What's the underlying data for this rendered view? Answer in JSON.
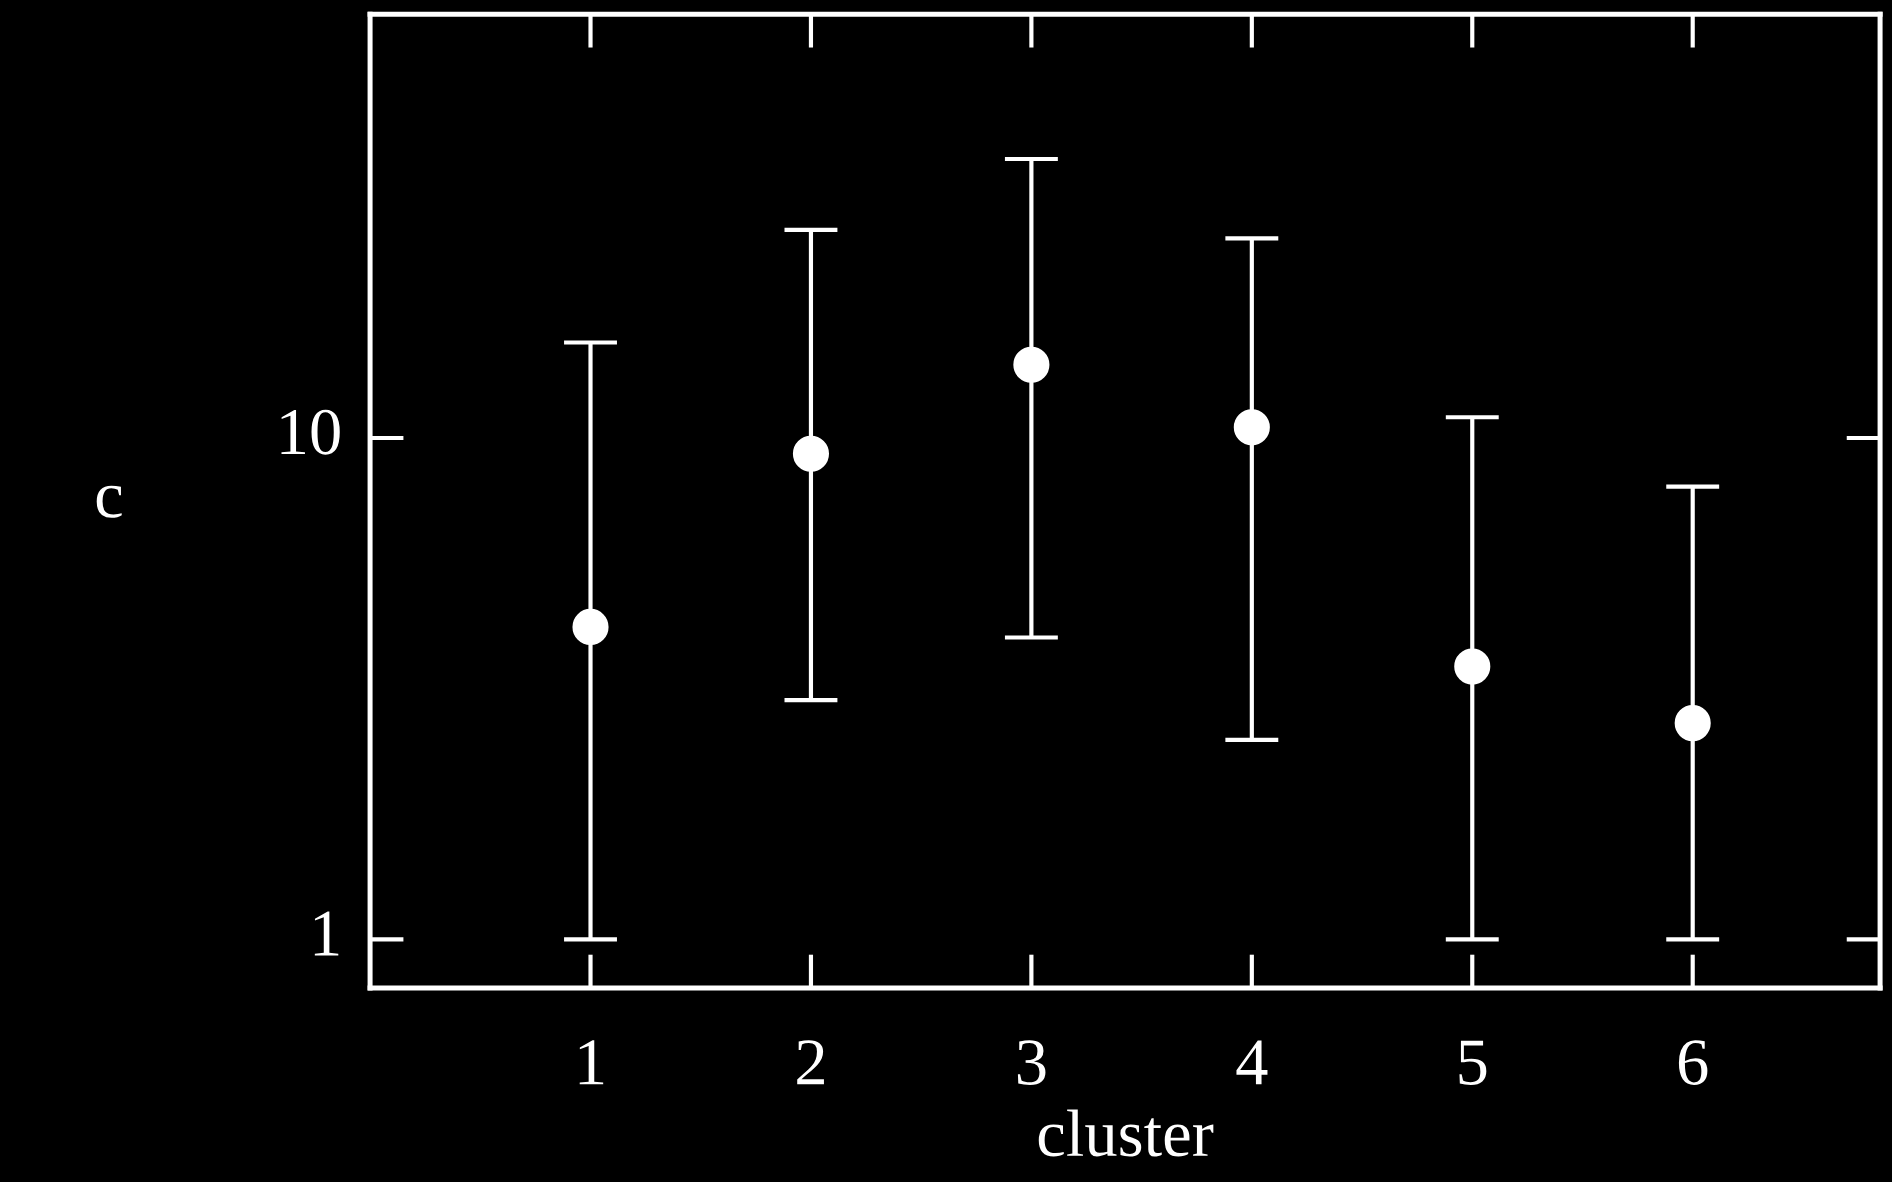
{
  "chart_data": {
    "type": "scatter",
    "xlabel": "cluster",
    "ylabel": "c",
    "log": "y",
    "x": [
      1,
      2,
      3,
      4,
      5,
      6
    ],
    "series": [
      {
        "color": "#ffffff",
        "values": [
          4.2,
          9.3,
          14,
          10.5,
          3.5,
          2.7
        ],
        "errors": [
          [
            1,
            15.5
          ],
          [
            3.0,
            26
          ],
          [
            4.0,
            36
          ],
          [
            2.5,
            25
          ],
          [
            1,
            11
          ],
          [
            1,
            8.0
          ]
        ]
      }
    ],
    "xlim": [
      0,
      6.85
    ],
    "xticks": [
      1,
      2,
      3,
      4,
      5,
      6
    ],
    "ylim": [
      0.8,
      70
    ],
    "yticks": [
      1,
      10
    ],
    "marker": "circle",
    "grid": false,
    "legend": false
  }
}
